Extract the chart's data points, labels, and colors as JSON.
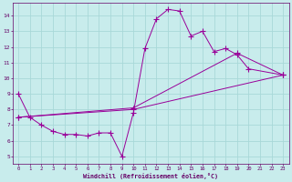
{
  "xlabel": "Windchill (Refroidissement éolien,°C)",
  "bg_color": "#c8ecec",
  "grid_color": "#a8d8d8",
  "line_color": "#990099",
  "xlim": [
    -0.5,
    23.5
  ],
  "ylim": [
    4.5,
    14.8
  ],
  "yticks": [
    5,
    6,
    7,
    8,
    9,
    10,
    11,
    12,
    13,
    14
  ],
  "xticks": [
    0,
    1,
    2,
    3,
    4,
    5,
    6,
    7,
    8,
    9,
    10,
    11,
    12,
    13,
    14,
    15,
    16,
    17,
    18,
    19,
    20,
    21,
    22,
    23
  ],
  "line1_x": [
    0,
    1,
    2,
    3,
    4,
    5,
    6,
    7,
    8,
    9,
    10,
    11,
    12,
    13,
    14,
    15,
    16,
    17,
    18,
    19,
    20,
    23
  ],
  "line1_y": [
    9.0,
    7.5,
    7.0,
    6.6,
    6.4,
    6.4,
    6.3,
    6.5,
    6.5,
    5.0,
    7.8,
    11.9,
    13.8,
    14.4,
    14.3,
    12.7,
    13.0,
    11.7,
    11.9,
    11.5,
    10.6,
    10.2
  ],
  "line2_x": [
    0,
    10,
    23
  ],
  "line2_y": [
    7.5,
    8.0,
    10.2
  ],
  "line3_x": [
    0,
    10,
    19,
    23
  ],
  "line3_y": [
    7.5,
    8.1,
    11.6,
    10.2
  ]
}
